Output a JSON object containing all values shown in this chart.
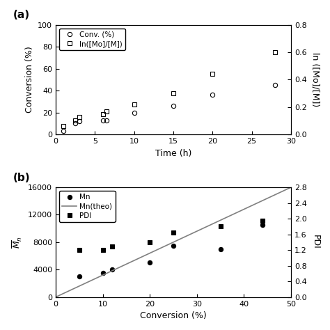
{
  "panel_a": {
    "conv_time": [
      1,
      2.5,
      3,
      6,
      6.5,
      10,
      15,
      20,
      28
    ],
    "conv_values": [
      3,
      10,
      12,
      13,
      13,
      20,
      26,
      36,
      45
    ],
    "ln_time": [
      1,
      2.5,
      3,
      6,
      6.5,
      10,
      15,
      20,
      28
    ],
    "ln_values": [
      0.06,
      0.1,
      0.13,
      0.15,
      0.17,
      0.22,
      0.3,
      0.44,
      0.6
    ],
    "xlabel": "Time (h)",
    "ylabel_left": "Conversion (%)",
    "ylabel_right": "ln ([Mo]/[M])",
    "xlim": [
      0,
      30
    ],
    "ylim_left": [
      0,
      100
    ],
    "ylim_right": [
      0,
      0.8
    ],
    "yticks_left": [
      0,
      20,
      40,
      60,
      80,
      100
    ],
    "yticks_right": [
      0.0,
      0.2,
      0.4,
      0.6,
      0.8
    ],
    "xticks": [
      0,
      5,
      10,
      15,
      20,
      25,
      30
    ],
    "legend_conv": "Conv. (%)",
    "legend_ln": "ln([Mo]/[M])"
  },
  "panel_b": {
    "mn_conv": [
      5,
      10,
      12,
      20,
      25,
      35,
      44
    ],
    "mn_values": [
      3000,
      3500,
      4000,
      5000,
      7500,
      7000,
      10500
    ],
    "theo_conv": [
      0,
      50
    ],
    "theo_mn": [
      0,
      16000
    ],
    "pdi_conv": [
      5,
      10,
      12,
      20,
      25,
      35,
      44
    ],
    "pdi_values": [
      1.2,
      1.2,
      1.3,
      1.4,
      1.65,
      1.8,
      1.95
    ],
    "xlabel": "Conversion (%)",
    "ylabel_left": "$\\overline{M}_n$",
    "ylabel_right": "PDI",
    "xlim": [
      0,
      50
    ],
    "ylim_left": [
      0,
      16000
    ],
    "ylim_right": [
      0,
      2.8
    ],
    "yticks_left": [
      0,
      4000,
      8000,
      12000,
      16000
    ],
    "yticks_right": [
      0.0,
      0.4,
      0.8,
      1.2,
      1.6,
      2.0,
      2.4,
      2.8
    ],
    "xticks": [
      0,
      10,
      20,
      30,
      40,
      50
    ],
    "legend_mn": "Mn",
    "legend_theo": "Mn(theo)",
    "legend_pdi": "PDI"
  },
  "panel_label_a": "(a)",
  "panel_label_b": "(b)",
  "bg_color": "#ffffff"
}
